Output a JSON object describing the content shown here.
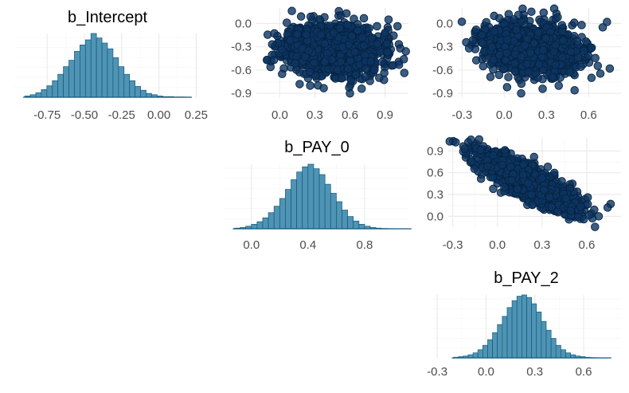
{
  "chart_data": [
    {
      "type": "histogram",
      "title": "b_Intercept",
      "xlabel": "",
      "ylabel": "",
      "xlim": [
        -0.97,
        0.28
      ],
      "xticks": [
        -0.75,
        -0.5,
        -0.25,
        0.0,
        0.25
      ],
      "xtick_labels": [
        "-0.75",
        "-0.50",
        "-0.25",
        "0.00",
        "0.25"
      ],
      "bin_start": -0.9,
      "bin_width": 0.037,
      "counts": [
        0.02,
        0.04,
        0.07,
        0.12,
        0.18,
        0.26,
        0.36,
        0.48,
        0.58,
        0.72,
        0.82,
        0.9,
        1.0,
        0.93,
        0.85,
        0.76,
        0.62,
        0.48,
        0.36,
        0.26,
        0.17,
        0.11,
        0.06,
        0.04,
        0.02,
        0.01,
        0.01,
        0.005,
        0.005,
        0.003
      ]
    },
    {
      "type": "scatter",
      "xlabel": "",
      "ylabel": "",
      "xlim": [
        -0.2,
        1.1
      ],
      "ylim": [
        -0.95,
        0.2
      ],
      "xticks": [
        0.0,
        0.3,
        0.6,
        0.9
      ],
      "xtick_labels": [
        "0.0",
        "0.3",
        "0.6",
        "0.9"
      ],
      "yticks": [
        0.0,
        -0.3,
        -0.6,
        -0.9
      ],
      "ytick_labels": [
        "0.0",
        "-0.3",
        "-0.6",
        "-0.9"
      ],
      "cloud": {
        "cx": 0.46,
        "cy": -0.33,
        "sx": 0.2,
        "sy": 0.16,
        "r": -0.1,
        "n": 1300,
        "seed": 11
      },
      "points": [
        [
          0.57,
          0.13
        ],
        [
          0.6,
          -0.9
        ],
        [
          0.93,
          0.05
        ],
        [
          1.03,
          -0.32
        ],
        [
          -0.11,
          -0.47
        ],
        [
          -0.05,
          -0.47
        ],
        [
          0.58,
          -0.02
        ],
        [
          0.85,
          -0.7
        ],
        [
          0.17,
          -0.78
        ],
        [
          0.9,
          -0.12
        ],
        [
          0.06,
          0.01
        ],
        [
          0.02,
          -0.65
        ],
        [
          0.7,
          -0.84
        ],
        [
          0.26,
          -0.8
        ],
        [
          0.92,
          -0.37
        ]
      ]
    },
    {
      "type": "scatter",
      "xlabel": "",
      "ylabel": "",
      "xlim": [
        -0.33,
        0.83
      ],
      "ylim": [
        -0.95,
        0.2
      ],
      "xticks": [
        -0.3,
        0.0,
        0.3,
        0.6
      ],
      "xtick_labels": [
        "-0.3",
        "0.0",
        "0.3",
        "0.6"
      ],
      "yticks": [
        0.0,
        -0.3,
        -0.6,
        -0.9
      ],
      "ytick_labels": [
        "0.0",
        "-0.3",
        "-0.6",
        "-0.9"
      ],
      "cloud": {
        "cx": 0.2,
        "cy": -0.33,
        "sx": 0.16,
        "sy": 0.16,
        "r": -0.22,
        "n": 1300,
        "seed": 23
      },
      "points": [
        [
          0.28,
          0.14
        ],
        [
          0.12,
          -0.9
        ],
        [
          0.75,
          -0.58
        ],
        [
          -0.25,
          -0.32
        ],
        [
          0.38,
          0.08
        ],
        [
          0.55,
          -0.02
        ],
        [
          0.62,
          -0.7
        ],
        [
          -0.2,
          -0.08
        ],
        [
          0.5,
          -0.86
        ],
        [
          0.7,
          -0.05
        ],
        [
          -0.15,
          -0.55
        ],
        [
          0.1,
          0.11
        ],
        [
          0.73,
          0.02
        ],
        [
          0.02,
          -0.82
        ]
      ]
    },
    {
      "type": "histogram",
      "title": "b_PAY_0",
      "xlabel": "",
      "ylabel": "",
      "xlim": [
        -0.19,
        1.11
      ],
      "xticks": [
        0.0,
        0.4,
        0.8
      ],
      "xtick_labels": [
        "0.0",
        "0.4",
        "0.8"
      ],
      "bin_start": -0.12,
      "bin_width": 0.04,
      "counts": [
        0.01,
        0.02,
        0.04,
        0.07,
        0.11,
        0.17,
        0.25,
        0.35,
        0.47,
        0.61,
        0.76,
        0.88,
        0.96,
        1.0,
        0.93,
        0.84,
        0.69,
        0.55,
        0.42,
        0.29,
        0.19,
        0.12,
        0.07,
        0.04,
        0.02,
        0.01,
        0.005,
        0.003,
        0.002,
        0.001,
        0.001
      ]
    },
    {
      "type": "scatter",
      "xlabel": "",
      "ylabel": "",
      "xlim": [
        -0.33,
        0.83
      ],
      "ylim": [
        -0.15,
        1.08
      ],
      "xticks": [
        -0.3,
        0.0,
        0.3,
        0.6
      ],
      "xtick_labels": [
        "-0.3",
        "0.0",
        "0.3",
        "0.6"
      ],
      "yticks": [
        0.9,
        0.6,
        0.3,
        0.0
      ],
      "ytick_labels": [
        "0.9",
        "0.6",
        "0.3",
        "0.0"
      ],
      "cloud": {
        "cx": 0.2,
        "cy": 0.48,
        "sx": 0.16,
        "sy": 0.2,
        "r": -0.82,
        "n": 1300,
        "seed": 37
      },
      "points": [
        [
          -0.28,
          1.02
        ],
        [
          0.76,
          0.17
        ],
        [
          0.68,
          0.0
        ],
        [
          0.58,
          -0.04
        ],
        [
          -0.22,
          0.93
        ],
        [
          0.74,
          0.12
        ],
        [
          0.65,
          0.09
        ],
        [
          0.05,
          0.91
        ]
      ]
    },
    {
      "type": "histogram",
      "title": "b_PAY_2",
      "xlabel": "",
      "ylabel": "",
      "xlim": [
        -0.33,
        0.83
      ],
      "xticks": [
        -0.3,
        0.0,
        0.3,
        0.6
      ],
      "xtick_labels": [
        "-0.3",
        "0.0",
        "0.3",
        "0.6"
      ],
      "bin_start": -0.2,
      "bin_width": 0.03,
      "counts": [
        0.01,
        0.02,
        0.03,
        0.05,
        0.08,
        0.13,
        0.2,
        0.29,
        0.4,
        0.53,
        0.66,
        0.8,
        0.91,
        0.98,
        1.0,
        0.96,
        0.86,
        0.73,
        0.58,
        0.44,
        0.31,
        0.2,
        0.13,
        0.08,
        0.05,
        0.03,
        0.02,
        0.01,
        0.005,
        0.003,
        0.002,
        0.001
      ]
    }
  ]
}
